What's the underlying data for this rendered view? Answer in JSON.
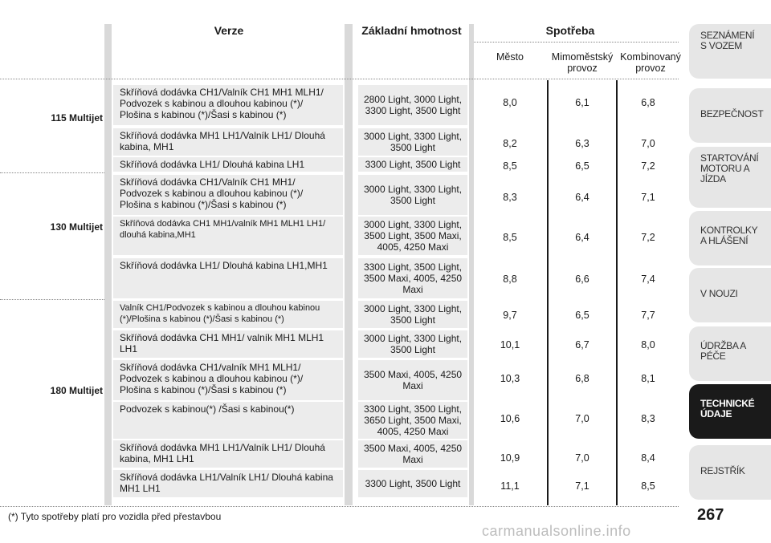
{
  "headers": {
    "verze": "Verze",
    "hmotnost": "Základní hmotnost",
    "spotreba": "Spotřeba",
    "mesto": "Město",
    "mimo": "Mimoměstský provoz",
    "komb": "Kombinovaný provoz"
  },
  "engines": [
    "115 Multijet",
    "130 Multijet",
    "180 Multijet"
  ],
  "rows": [
    {
      "verze": "Skříňová dodávka CH1/Valník CH1 MH1 MLH1/ Podvozek s kabinou a dlouhou kabinou (*)/ Plošina s kabinou (*)/Šasi s kabinou (*)",
      "hmotnost": "2800 Light, 3000 Light, 3300 Light, 3500 Light",
      "mesto": "8,0",
      "mimo": "6,1",
      "komb": "6,8"
    },
    {
      "verze": "Skříňová dodávka MH1 LH1/Valník LH1/ Dlouhá kabina, MH1",
      "hmotnost": "3000 Light, 3300 Light, 3500 Light",
      "mesto": "8,2",
      "mimo": "6,3",
      "komb": "7,0"
    },
    {
      "verze": "Skříňová dodávka  LH1/ Dlouhá kabina LH1",
      "hmotnost": "3300 Light, 3500 Light",
      "mesto": "8,5",
      "mimo": "6,5",
      "komb": "7,2"
    },
    {
      "verze": "Skříňová dodávka CH1/Valník CH1 MH1/ Podvozek s kabinou a dlouhou kabinou (*)/ Plošina s kabinou (*)/Šasi s kabinou (*)",
      "hmotnost": "3000 Light, 3300 Light, 3500 Light",
      "mesto": "8,3",
      "mimo": "6,4",
      "komb": "7,1"
    },
    {
      "verze": "Skříňová dodávka CH1 MH1/valník MH1 MLH1 LH1/ dlouhá kabina,MH1",
      "hmotnost": "3000 Light, 3300 Light, 3500 Light, 3500 Maxi, 4005, 4250 Maxi",
      "mesto": "8,5",
      "mimo": "6,4",
      "komb": "7,2"
    },
    {
      "verze": "Skříňová dodávka  LH1/ Dlouhá kabina LH1,MH1",
      "hmotnost": "3300 Light, 3500 Light, 3500 Maxi, 4005, 4250 Maxi",
      "mesto": "8,8",
      "mimo": "6,6",
      "komb": "7,4"
    },
    {
      "verze": "Valník CH1/Podvozek s kabinou a dlouhou kabinou (*)/Plošina s kabinou (*)/Šasi s kabinou (*)",
      "hmotnost": "3000 Light, 3300 Light, 3500 Light",
      "mesto": "9,7",
      "mimo": "6,5",
      "komb": "7,7"
    },
    {
      "verze": "Skříňová dodávka CH1 MH1/ valník MH1 MLH1 LH1",
      "hmotnost": "3000 Light, 3300 Light, 3500 Light",
      "mesto": "10,1",
      "mimo": "6,7",
      "komb": "8,0"
    },
    {
      "verze": "Skříňová dodávka CH1/valník MH1 MLH1/ Podvozek s kabinou a dlouhou kabinou (*)/ Plošina s kabinou (*)/Šasi s kabinou (*)",
      "hmotnost": "3500 Maxi, 4005, 4250 Maxi",
      "mesto": "10,3",
      "mimo": "6,8",
      "komb": "8,1"
    },
    {
      "verze": "Podvozek s kabinou(*) /Šasi s kabinou(*)",
      "hmotnost": "3300 Light, 3500 Light, 3650 Light, 3500 Maxi, 4005, 4250 Maxi",
      "mesto": "10,6",
      "mimo": "7,0",
      "komb": "8,3"
    },
    {
      "verze": "Skříňová dodávka MH1 LH1/Valník LH1/ Dlouhá kabina, MH1 LH1",
      "hmotnost": "3500 Maxi, 4005, 4250 Maxi",
      "mesto": "10,9",
      "mimo": "7,0",
      "komb": "8,4"
    },
    {
      "verze": "Skříňová dodávka LH1/Valník LH1/ Dlouhá kabina MH1 LH1",
      "hmotnost": "3300 Light, 3500 Light",
      "mesto": "11,1",
      "mimo": "7,1",
      "komb": "8,5"
    }
  ],
  "tabs": [
    "SEZNÁMENÍ S VOZEM",
    "BEZPEČNOST",
    "STARTOVÁNÍ MOTORU A JÍZDA",
    "KONTROLKY A HLÁŠENÍ",
    "V NOUZI",
    "ÚDRŽBA A PÉČE",
    "TECHNICKÉ ÚDAJE",
    "REJSTŘÍK"
  ],
  "footnote": "(*) Tyto spotřeby platí pro vozidla před přestavbou",
  "page_number": "267",
  "watermark": "carmanualsonline.info"
}
